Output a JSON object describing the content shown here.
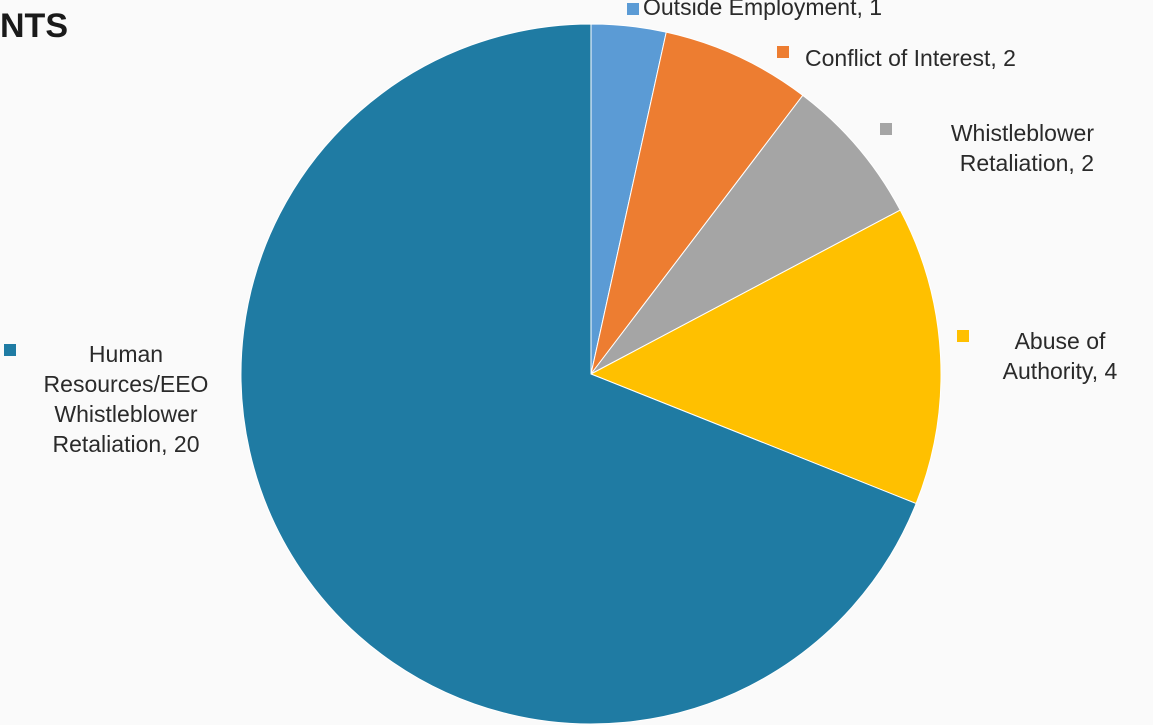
{
  "title": "NTS",
  "chart_data": {
    "type": "pie",
    "title": "NTS",
    "slices": [
      {
        "label": "Outside Employment",
        "value": 1,
        "color": "#5b9bd5",
        "display": "Outside Employment, 1"
      },
      {
        "label": "Conflict of Interest",
        "value": 2,
        "color": "#ed7d31",
        "display": "Conflict of Interest, 2"
      },
      {
        "label": "Whistleblower Retaliation",
        "value": 2,
        "color": "#a5a5a5",
        "display": "Whistleblower Retaliation, 2"
      },
      {
        "label": "Abuse of Authority",
        "value": 4,
        "color": "#ffc000",
        "display": "Abuse of Authority, 4"
      },
      {
        "label": "Human Resources/EEO Whistleblower Retaliation",
        "value": 20,
        "color": "#1f7ba3",
        "display": "Human Resources/EEO Whistleblower Retaliation, 20"
      }
    ],
    "legend": "data labels beside slices"
  }
}
